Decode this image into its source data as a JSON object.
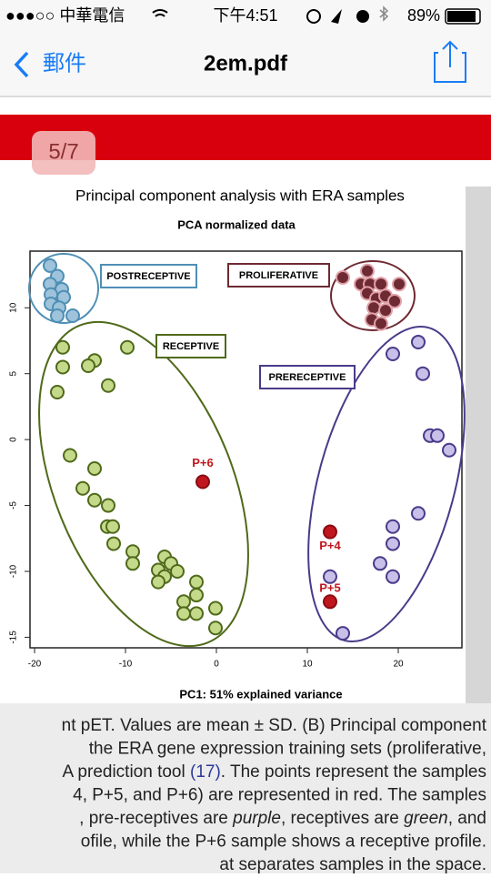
{
  "status_bar": {
    "carrier": "●●●○○ 中華電信",
    "time": "下午4:51",
    "battery": "89%"
  },
  "nav_bar": {
    "back": "郵件",
    "title": "2em.pdf"
  },
  "page_badge": "5/7",
  "chart_data": {
    "type": "scatter",
    "title": "Principal component analysis with ERA samples",
    "subtitle": "PCA normalized data",
    "x_label": "PC1: 51% explained variance",
    "xlim": [
      -20.5,
      27
    ],
    "ylim": [
      -15.8,
      14.3
    ],
    "xticks": [
      -20,
      -10,
      0,
      10,
      20
    ],
    "yticks": [
      -15,
      -10,
      -5,
      0,
      5,
      10
    ],
    "series": [
      {
        "name": "POSTRECEPTIVE",
        "color": "#9ec3db",
        "x": [
          -18.3,
          -17.5,
          -18.3,
          -17.0,
          -18.2,
          -16.8,
          -18.2,
          -17.3,
          -17.5,
          -15.8
        ],
        "values": [
          13.2,
          12.4,
          11.8,
          11.4,
          11.0,
          10.8,
          10.3,
          10.0,
          9.4,
          9.4
        ]
      },
      {
        "name": "PROLIFERATIVE",
        "color": "#6e2a32",
        "x": [
          13.9,
          16.6,
          15.9,
          16.9,
          18.1,
          20.1,
          16.6,
          17.6,
          18.6,
          19.6,
          17.3,
          18.6,
          17.1,
          18.1
        ],
        "values": [
          12.3,
          12.8,
          11.8,
          11.8,
          11.8,
          11.8,
          11.1,
          10.7,
          10.9,
          10.5,
          10.0,
          9.8,
          9.1,
          8.8
        ]
      },
      {
        "name": "RECEPTIVE",
        "color": "#c5d98a",
        "x": [
          -16.9,
          -9.8,
          -16.9,
          -13.4,
          -14.1,
          -11.9,
          -17.5,
          -16.1,
          -13.4,
          -14.7,
          -13.4,
          -11.9,
          -12.0,
          -11.4,
          -11.3,
          -9.2,
          -9.2,
          -5.7,
          -5.0,
          -6.4,
          -4.3,
          -5.7,
          -6.4,
          -2.2,
          -3.6,
          -2.2,
          -0.1,
          -3.6,
          -2.2,
          -0.1
        ],
        "values": [
          7.0,
          7.0,
          5.5,
          6.0,
          5.6,
          4.1,
          3.6,
          -1.2,
          -2.2,
          -3.7,
          -4.6,
          -5.0,
          -6.6,
          -6.6,
          -7.9,
          -8.5,
          -9.4,
          -8.9,
          -9.4,
          -9.9,
          -10.0,
          -10.4,
          -10.8,
          -10.8,
          -12.3,
          -11.8,
          -12.8,
          -13.2,
          -13.2,
          -14.3
        ]
      },
      {
        "name": "PRERECEPTIVE",
        "color": "#c8c0e8",
        "x": [
          19.4,
          22.2,
          22.7,
          23.5,
          24.3,
          25.6,
          22.2,
          19.4,
          19.4,
          18.0,
          19.4,
          12.5,
          13.9
        ],
        "values": [
          6.5,
          7.4,
          5.0,
          0.3,
          0.3,
          -0.8,
          -5.6,
          -6.6,
          -7.9,
          -9.4,
          -10.4,
          -10.4,
          -14.7
        ]
      },
      {
        "color": "#c0171f",
        "x": [
          -1.5,
          12.5,
          12.5
        ],
        "values": [
          -3.2,
          -7.0,
          -12.3
        ],
        "point_labels": [
          "P+6",
          "P+4",
          "P+5"
        ]
      }
    ]
  },
  "caption": [
    [
      "nt pET. Values are mean ± SD. (B) Principal component"
    ],
    [
      "the ERA gene expression training sets (proliferative,"
    ],
    [
      "A prediction tool ",
      "(17)",
      ". The points represent the samples"
    ],
    [
      "4, P+5, and P+6) are represented in red. The samples"
    ],
    [
      ", pre-receptives are ",
      "purple",
      ", receptives are ",
      "green",
      ", and"
    ],
    [
      "ofile, while the P+6 sample shows a receptive profile."
    ],
    [
      "at separates samples in the space."
    ]
  ]
}
